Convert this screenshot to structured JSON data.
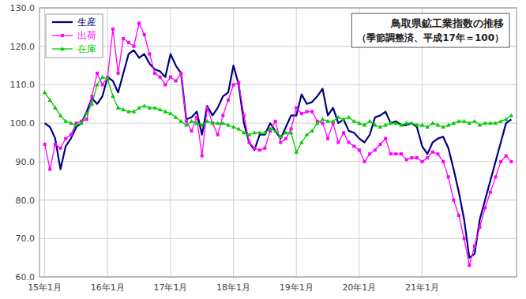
{
  "chart_data": {
    "type": "line",
    "title": "鳥取県鉱工業指数の推移",
    "subtitle": "（季節調整済、平成17年＝100）",
    "categories": [
      "15年1月",
      null,
      null,
      null,
      null,
      null,
      null,
      null,
      null,
      null,
      null,
      null,
      "16年1月",
      null,
      null,
      null,
      null,
      null,
      null,
      null,
      null,
      null,
      null,
      null,
      "17年1月",
      null,
      null,
      null,
      null,
      null,
      null,
      null,
      null,
      null,
      null,
      null,
      "18年1月",
      null,
      null,
      null,
      null,
      null,
      null,
      null,
      null,
      null,
      null,
      null,
      "19年1月",
      null,
      null,
      null,
      null,
      null,
      null,
      null,
      null,
      null,
      null,
      null,
      "20年1月",
      null,
      null,
      null,
      null,
      null,
      null,
      null,
      null,
      null,
      null,
      null,
      "21年1月",
      null,
      null,
      null,
      null,
      null,
      null,
      null,
      null,
      null,
      null,
      null,
      null,
      null,
      null,
      null,
      null,
      null
    ],
    "series": [
      {
        "name": "生産",
        "color": "#000080",
        "values": [
          100.0,
          99.0,
          96.0,
          88.0,
          94.0,
          96.0,
          99.0,
          100.0,
          103.0,
          106.5,
          105.0,
          107.0,
          112.0,
          111.0,
          108.0,
          113.0,
          118.0,
          119.0,
          117.0,
          118.0,
          115.5,
          114.0,
          113.5,
          112.0,
          118.0,
          115.0,
          113.0,
          101.0,
          101.5,
          103.0,
          97.0,
          104.5,
          102.0,
          104.0,
          107.0,
          108.0,
          115.0,
          110.0,
          100.0,
          95.0,
          93.0,
          97.0,
          97.0,
          100.0,
          98.0,
          96.0,
          99.0,
          102.0,
          102.0,
          107.5,
          105.0,
          105.5,
          107.0,
          109.0,
          102.0,
          104.0,
          100.0,
          101.0,
          98.0,
          97.5,
          96.0,
          95.0,
          97.0,
          101.5,
          102.0,
          103.0,
          100.0,
          100.5,
          99.5,
          99.5,
          100.0,
          99.0,
          94.0,
          92.0,
          95.0,
          96.0,
          96.5,
          93.5,
          88.0,
          82.0,
          75.0,
          65.0,
          66.0,
          75.0,
          80.0,
          85.0,
          90.0,
          95.0,
          100.0,
          101.0
        ]
      },
      {
        "name": "出荷",
        "color": "#FF00FF",
        "marker": "square",
        "values": [
          94.5,
          88.0,
          94.5,
          93.5,
          96.0,
          97.0,
          100.0,
          100.5,
          101.0,
          107.0,
          113.0,
          110.0,
          112.0,
          124.5,
          113.0,
          122.0,
          121.0,
          120.0,
          126.0,
          123.0,
          118.0,
          113.0,
          112.0,
          110.0,
          112.0,
          111.0,
          113.0,
          100.5,
          98.0,
          101.5,
          91.5,
          104.0,
          100.0,
          97.0,
          102.0,
          106.0,
          110.0,
          110.5,
          102.0,
          95.0,
          93.5,
          93.0,
          93.5,
          98.0,
          100.5,
          95.0,
          96.0,
          98.5,
          104.0,
          102.5,
          103.0,
          103.0,
          100.5,
          100.0,
          96.0,
          100.0,
          95.0,
          97.5,
          95.0,
          94.0,
          93.0,
          90.0,
          92.0,
          93.0,
          94.5,
          96.0,
          92.0,
          92.0,
          92.0,
          90.5,
          91.0,
          91.0,
          90.0,
          91.0,
          92.5,
          92.0,
          90.0,
          86.0,
          80.0,
          76.0,
          70.0,
          63.0,
          68.0,
          73.0,
          78.0,
          82.0,
          86.0,
          90.0,
          91.5,
          90.0
        ]
      },
      {
        "name": "在庫",
        "color": "#00CC00",
        "marker": "triangle",
        "values": [
          108.0,
          106.0,
          104.0,
          102.0,
          100.5,
          100.0,
          99.5,
          100.0,
          102.5,
          105.0,
          110.0,
          112.0,
          111.5,
          107.0,
          104.0,
          103.5,
          103.0,
          103.0,
          104.0,
          104.5,
          104.0,
          104.0,
          103.5,
          103.0,
          102.5,
          101.5,
          100.5,
          99.5,
          100.5,
          100.0,
          99.5,
          100.5,
          100.0,
          100.0,
          100.0,
          99.5,
          99.0,
          98.5,
          97.5,
          97.0,
          97.5,
          97.5,
          97.5,
          98.5,
          98.0,
          96.5,
          97.5,
          97.5,
          92.5,
          95.0,
          97.0,
          98.0,
          100.0,
          101.0,
          100.5,
          100.5,
          101.5,
          101.0,
          101.5,
          100.5,
          100.0,
          99.5,
          100.5,
          99.5,
          99.0,
          99.5,
          100.0,
          100.0,
          99.5,
          100.0,
          100.0,
          99.5,
          99.5,
          99.0,
          100.0,
          99.5,
          99.0,
          99.5,
          100.0,
          100.5,
          100.5,
          100.0,
          100.5,
          99.5,
          100.0,
          100.0,
          100.0,
          100.5,
          101.0,
          102.0
        ]
      }
    ],
    "ylim": [
      60.0,
      130.0
    ],
    "yticks": [
      {
        "value": 60.0,
        "label": "60.0"
      },
      {
        "value": 70.0,
        "label": "70.0"
      },
      {
        "value": 80.0,
        "label": "80.0"
      },
      {
        "value": 90.0,
        "label": "90.0"
      },
      {
        "value": 100.0,
        "label": "100.0"
      },
      {
        "value": 110.0,
        "label": "110.0"
      },
      {
        "value": 120.0,
        "label": "120.0"
      },
      {
        "value": 130.0,
        "label": "130.0"
      }
    ],
    "grid": true,
    "legend": "upper-left"
  }
}
